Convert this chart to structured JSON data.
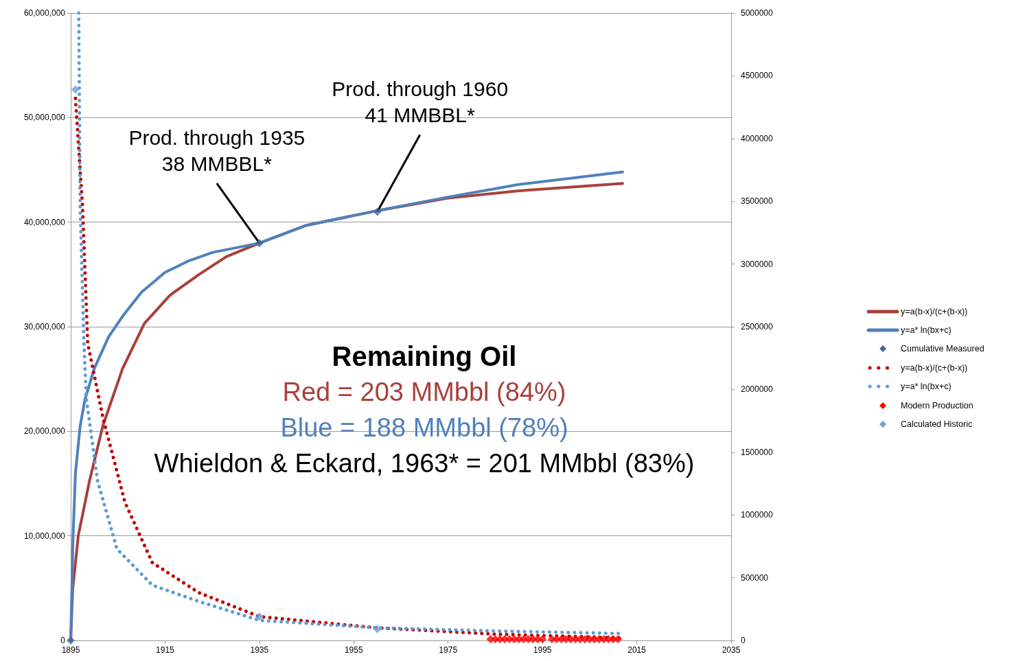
{
  "chart_data": {
    "type": "line",
    "xlim": [
      1895,
      2035
    ],
    "xticks": [
      1895,
      1915,
      1935,
      1955,
      1975,
      1995,
      2015,
      2035
    ],
    "ylim": [
      0,
      60000000
    ],
    "yticks": [
      {
        "value": 0,
        "label": "0"
      },
      {
        "value": 10000000,
        "label": "10,000,000"
      },
      {
        "value": 20000000,
        "label": "20,000,000"
      },
      {
        "value": 30000000,
        "label": "30,000,000"
      },
      {
        "value": 40000000,
        "label": "40,000,000"
      },
      {
        "value": 50000000,
        "label": "50,000,000"
      },
      {
        "value": 60000000,
        "label": "60,000,000"
      }
    ],
    "y2lim": [
      0,
      5000000
    ],
    "y2ticks": [
      0,
      500000,
      1000000,
      1500000,
      2000000,
      2500000,
      3000000,
      3500000,
      4000000,
      4500000,
      5000000
    ],
    "grid": "y",
    "legend": "right",
    "series": [
      {
        "name": "y=a(b-x)/(c+(b-x))",
        "type": "line",
        "line_style": "solid",
        "color": "#a9403c",
        "x": [
          1895,
          1895.4,
          1896.6,
          1899,
          1901.8,
          1906,
          1910.6,
          1916,
          1922.2,
          1928,
          1935,
          1945,
          1960,
          1975,
          1990,
          2012
        ],
        "values": [
          0,
          4800000,
          10000000,
          15300000,
          20500000,
          26000000,
          30300000,
          33000000,
          35000000,
          36700000,
          38000000,
          39700000,
          41100000,
          42300000,
          43000000,
          43700000
        ]
      },
      {
        "name": "y=a* ln(bx+c)",
        "type": "line",
        "line_style": "solid",
        "color": "#4f81bd",
        "x": [
          1895,
          1895.5,
          1896,
          1897,
          1898,
          1900,
          1903,
          1906,
          1910,
          1915,
          1920,
          1925,
          1935,
          1945,
          1960,
          1975,
          1990,
          2012
        ],
        "values": [
          0,
          10000000,
          16000000,
          20500000,
          23000000,
          26000000,
          29000000,
          31000000,
          33300000,
          35200000,
          36300000,
          37100000,
          38000000,
          39700000,
          41100000,
          42400000,
          43600000,
          44800000
        ]
      },
      {
        "name": "Cumulative Measured",
        "type": "scatter",
        "marker": "diamond",
        "color": "#44679c",
        "x": [
          1895,
          1935,
          1960
        ],
        "values": [
          0,
          38000000,
          41000000
        ]
      },
      {
        "name": "y=a(b-x)/(c+(b-x))",
        "type": "line",
        "line_style": "dotted",
        "axis": "y2",
        "color": "#c00000",
        "x": [
          1896,
          1897.5,
          1898.6,
          1901.8,
          1906.5,
          1912.3,
          1922.2,
          1935,
          1960,
          1985,
          2012
        ],
        "values": [
          4320000,
          3460000,
          2370000,
          1780000,
          1100000,
          620000,
          380000,
          190000,
          100000,
          50000,
          20000
        ]
      },
      {
        "name": "y=a* ln(bx+c)",
        "type": "line",
        "line_style": "dotted",
        "axis": "y2",
        "color": "#5b9bd5",
        "x": [
          1896.7,
          1897,
          1897.8,
          1898.3,
          1900.7,
          1904.8,
          1912.3,
          1922.2,
          1935,
          1960,
          1985,
          2012
        ],
        "values": [
          5000000,
          3460000,
          2370000,
          1930000,
          1270000,
          730000,
          440000,
          310000,
          160000,
          100000,
          75000,
          55000
        ]
      },
      {
        "name": "Modern Production",
        "type": "scatter",
        "marker": "diamond",
        "axis": "y2",
        "color": "#ff0000",
        "x": [
          1984,
          1985,
          1986,
          1987,
          1988,
          1989,
          1990,
          1991,
          1992,
          1993,
          1994,
          1995,
          1997,
          1998,
          1999,
          2000,
          2001,
          2002,
          2003,
          2004,
          2005,
          2006,
          2007,
          2008,
          2009,
          2010,
          2011
        ],
        "values": [
          10000,
          10000,
          10000,
          10000,
          10000,
          10000,
          10000,
          10000,
          10000,
          10000,
          10000,
          10000,
          10000,
          10000,
          10000,
          10000,
          10000,
          10000,
          10000,
          10000,
          10000,
          10000,
          10000,
          10000,
          10000,
          10000,
          10000
        ]
      },
      {
        "name": "Calculated Historic",
        "type": "scatter",
        "marker": "diamond",
        "axis": "y2",
        "color": "#6f9fd8",
        "x": [
          1896,
          1935,
          1960
        ],
        "values": [
          4390000,
          190000,
          90000
        ]
      }
    ],
    "annotations": [
      {
        "text": "Prod. through 1935\n38 MMBBL*",
        "x": 1935,
        "y": 38000000
      },
      {
        "text": "Prod. through 1960\n41 MMBBL*",
        "x": 1960,
        "y": 41000000
      },
      "Remaining Oil",
      "Red = 203 MMbbl (84%)",
      "Blue = 188 MMbbl (78%)",
      "Whieldon & Eckard, 1963* = 201 MMbbl (83%)"
    ]
  }
}
